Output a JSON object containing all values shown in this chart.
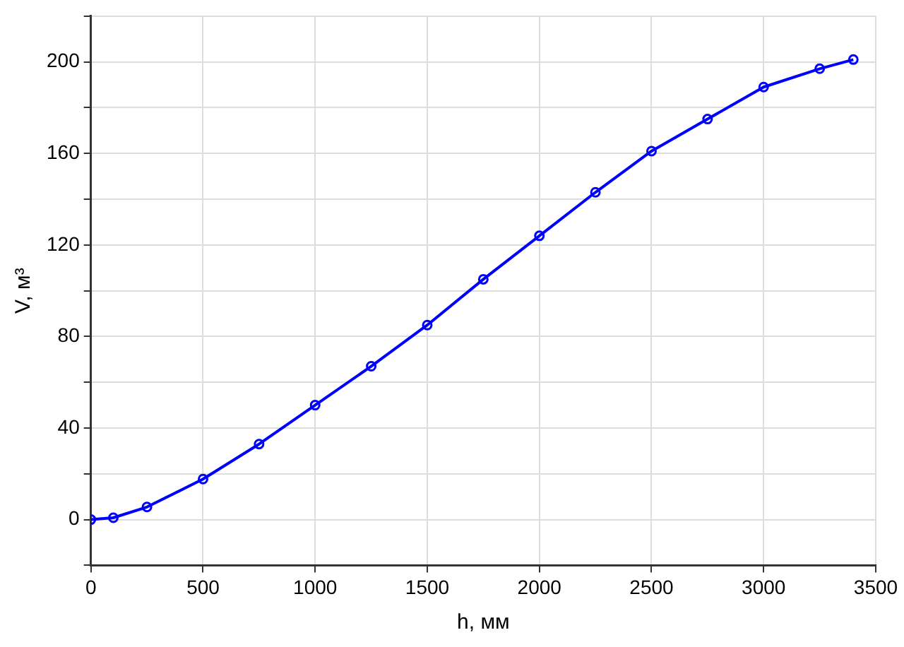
{
  "chart_data": {
    "type": "line",
    "xlabel": "h, мм",
    "ylabel": "V, м³",
    "x": [
      0,
      100,
      250,
      500,
      750,
      1000,
      1250,
      1500,
      1750,
      2000,
      2250,
      2500,
      2750,
      3000,
      3250,
      3400
    ],
    "series": [
      {
        "color": "#0000ff",
        "values": [
          0,
          0.8,
          5.5,
          17.7,
          33,
          50,
          67,
          85,
          105,
          124,
          143,
          161,
          175,
          189,
          197,
          201
        ]
      }
    ],
    "xlim": [
      0,
      3500
    ],
    "xticks": [
      0,
      500,
      1000,
      1500,
      2000,
      2500,
      3000,
      3500
    ],
    "ylim": [
      -20,
      220
    ],
    "yticks": [
      {
        "value": -20,
        "label": null
      },
      0,
      {
        "value": 20,
        "label": null
      },
      40,
      {
        "value": 60,
        "label": null
      },
      80,
      {
        "value": 100,
        "label": null
      },
      120,
      {
        "value": 140,
        "label": null
      },
      160,
      {
        "value": 180,
        "label": null
      },
      200,
      {
        "value": 220,
        "label": null
      }
    ],
    "grid": true,
    "legend": false,
    "marker": "circle",
    "line_style": "solid"
  }
}
